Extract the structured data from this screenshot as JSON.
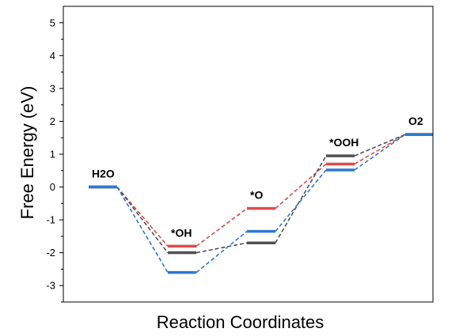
{
  "chart_data": {
    "type": "line",
    "xlabel": "Reaction Coordinates",
    "ylabel": "Free Energy (eV)",
    "ylim": [
      -3.5,
      5.5
    ],
    "yticks": [
      -3,
      -2,
      -1,
      0,
      1,
      2,
      3,
      4,
      5
    ],
    "ytick_labels": [
      "-3",
      "-2",
      "-1",
      "0",
      "1",
      "2",
      "3",
      "4",
      "5"
    ],
    "grid": false,
    "legend": "none",
    "categories": [
      "H2O",
      "*OH",
      "*O",
      "*OOH",
      "O2"
    ],
    "state_labels": [
      "H2O",
      "*OH",
      "*O",
      "*OOH",
      "O2"
    ],
    "label_anchor_series": [
      2,
      0,
      0,
      1,
      2
    ],
    "series": [
      {
        "color": "#e04a4a",
        "values": [
          0,
          -1.8,
          -0.65,
          0.7,
          1.6
        ]
      },
      {
        "color": "#505050",
        "values": [
          0,
          -2.0,
          -1.7,
          0.95,
          1.6
        ]
      },
      {
        "color": "#2f78d0",
        "values": [
          0,
          -2.6,
          -1.35,
          0.52,
          1.6
        ]
      }
    ]
  }
}
